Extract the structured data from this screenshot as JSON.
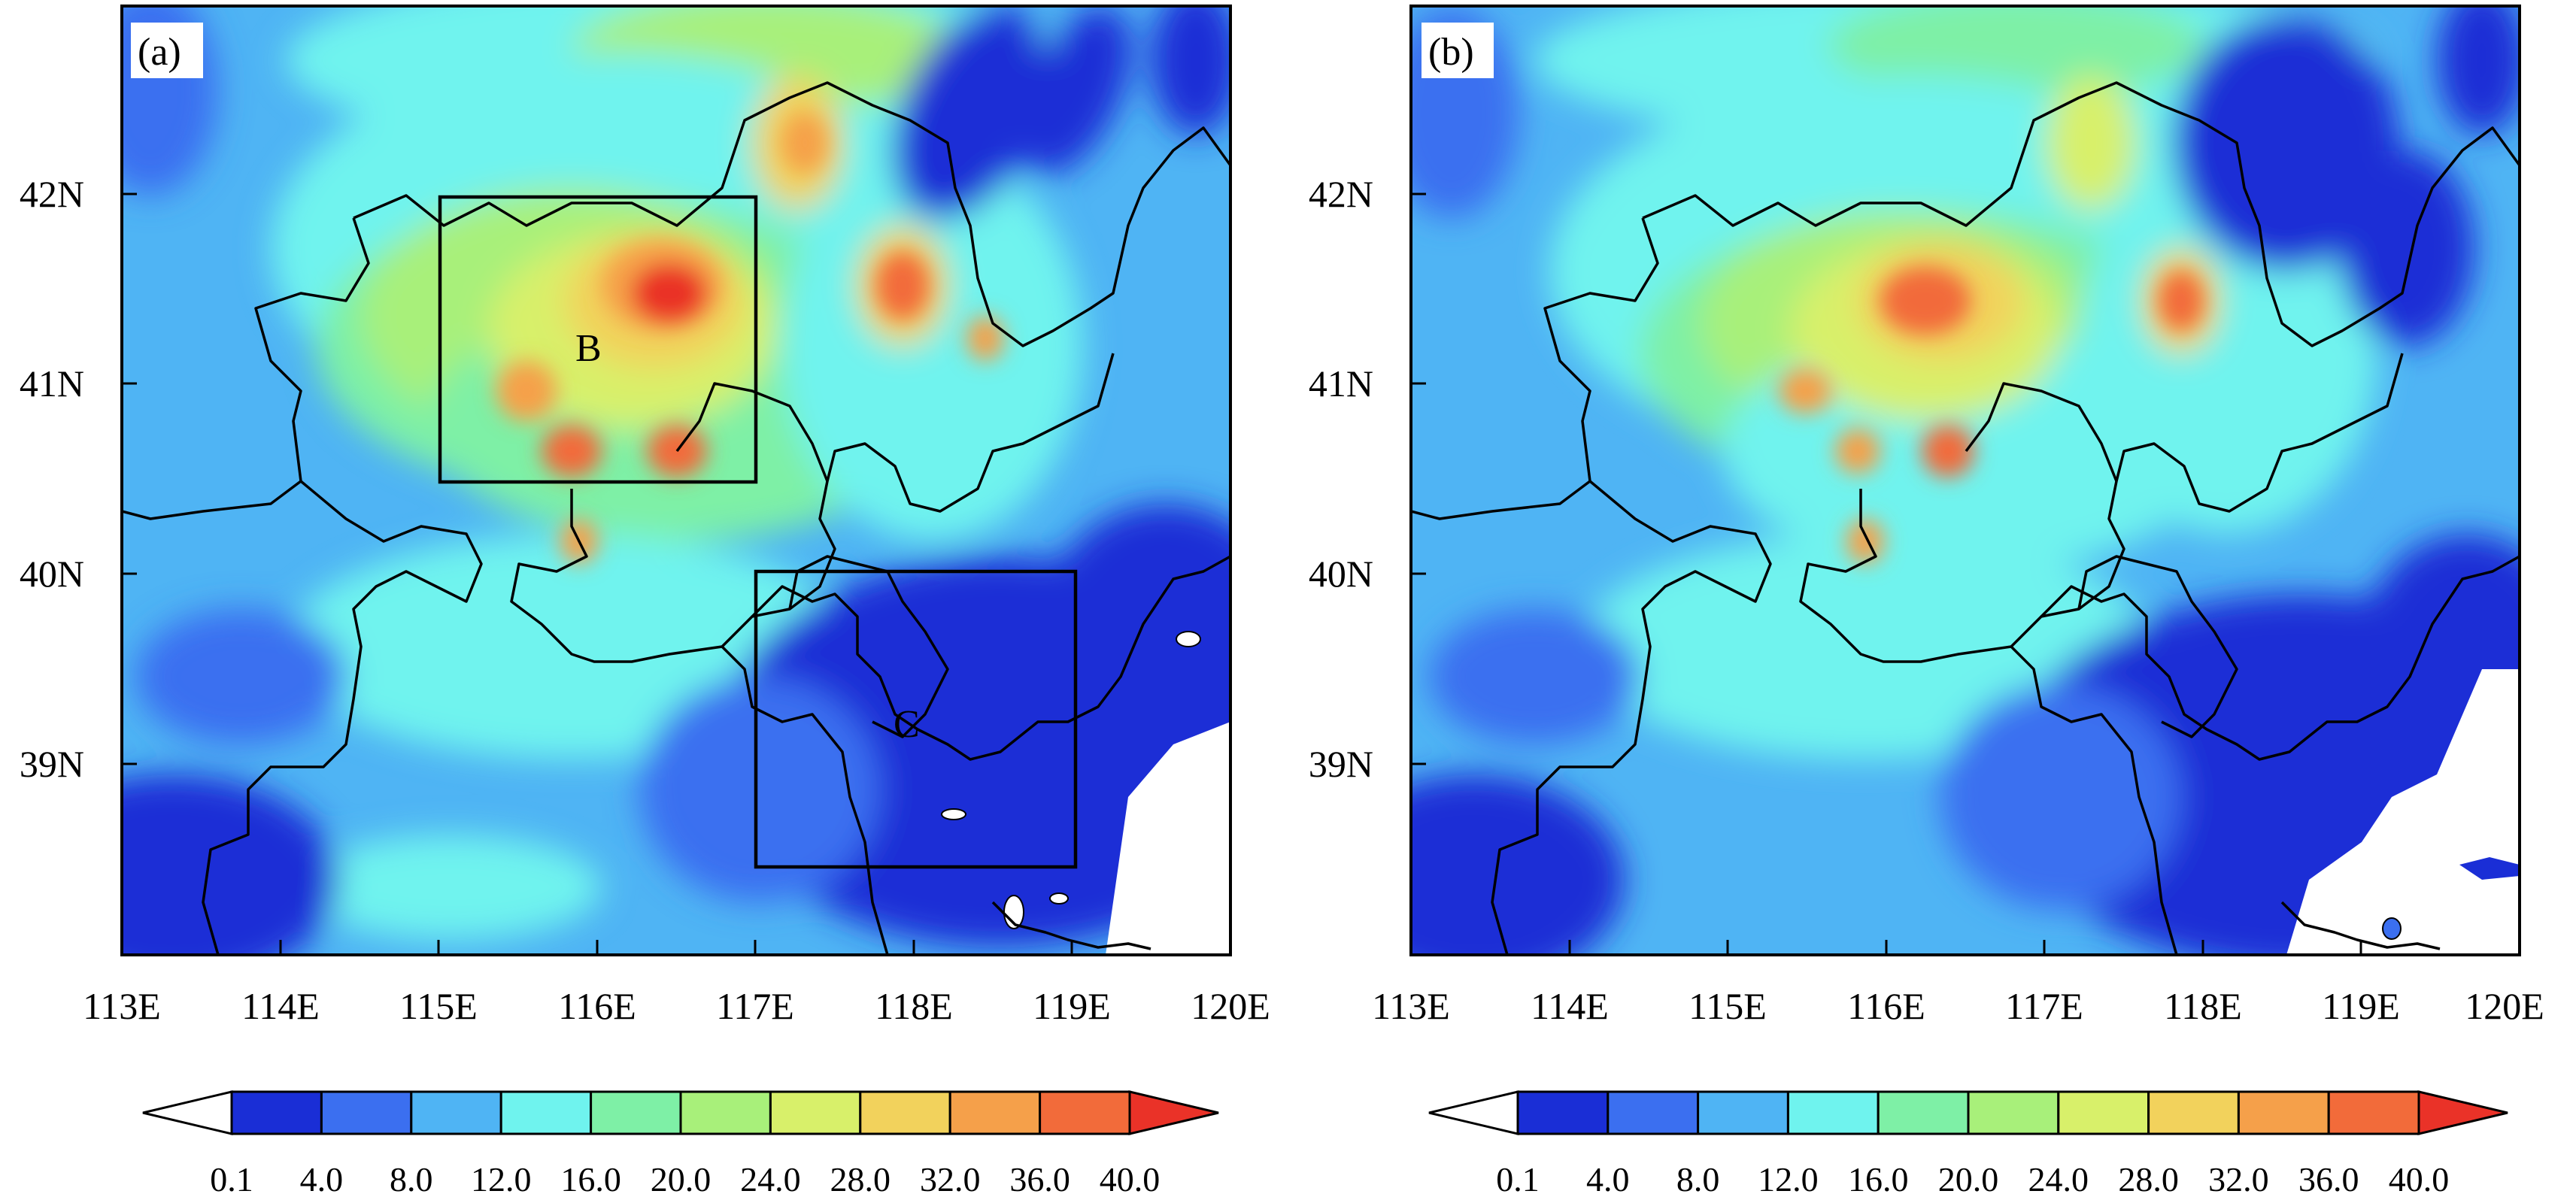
{
  "figure": {
    "panels": [
      {
        "label": "(a)",
        "x_ticks": [
          "113E",
          "114E",
          "115E",
          "116E",
          "117E",
          "118E",
          "119E",
          "120E"
        ],
        "y_ticks": [
          "42N",
          "41N",
          "40N",
          "39N"
        ],
        "boxes": [
          {
            "label": "B",
            "lon": [
              115,
              117
            ],
            "lat": [
              40.5,
              42
            ]
          },
          {
            "label": "C",
            "lon": [
              117,
              119
            ],
            "lat": [
              38.45,
              40.0
            ]
          }
        ]
      },
      {
        "label": "(b)",
        "x_ticks": [
          "113E",
          "114E",
          "115E",
          "116E",
          "117E",
          "118E",
          "119E",
          "120E"
        ],
        "y_ticks": [
          "42N",
          "41N",
          "40N",
          "39N"
        ],
        "boxes": []
      }
    ],
    "colorbar": {
      "labels": [
        "0.1",
        "4.0",
        "8.0",
        "12.0",
        "16.0",
        "20.0",
        "24.0",
        "28.0",
        "32.0",
        "36.0",
        "40.0"
      ],
      "colors": [
        "#ffffff",
        "#1a2ed6",
        "#3b6ff0",
        "#4fb4f4",
        "#6ff3ee",
        "#7ef0a6",
        "#a8f07a",
        "#d8f06a",
        "#f2d25c",
        "#f5a04a",
        "#f26b3a",
        "#ea3228"
      ]
    }
  }
}
